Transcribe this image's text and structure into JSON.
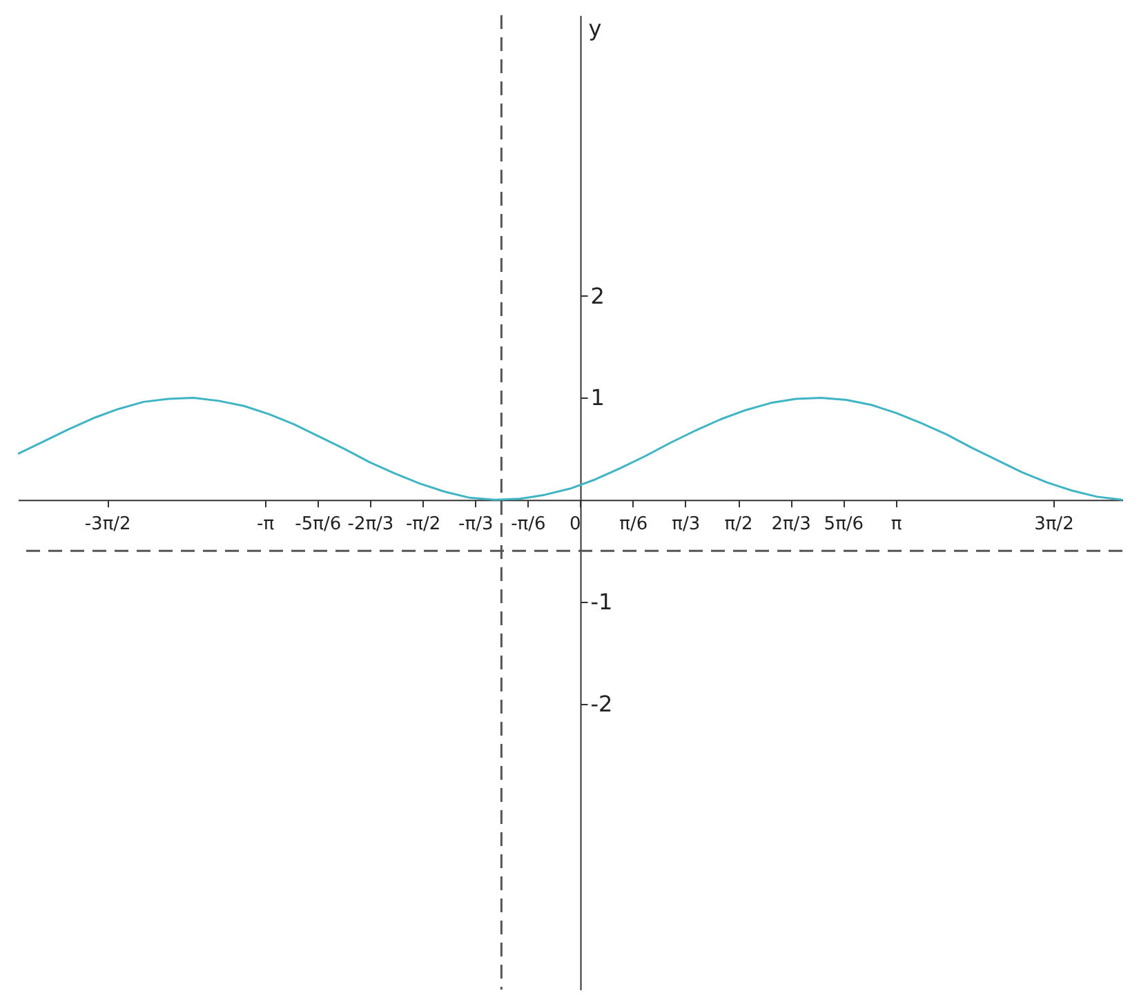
{
  "chart_data": {
    "type": "line",
    "ylabel": "y",
    "x": [
      -5.6,
      -5.35,
      -5.1,
      -4.85,
      -4.6,
      -4.35,
      -4.1,
      -3.85,
      -3.6,
      -3.35,
      -3.1,
      -2.85,
      -2.6,
      -2.35,
      -2.1,
      -1.85,
      -1.6,
      -1.35,
      -1.1,
      -0.85,
      -0.6,
      -0.35,
      -0.1,
      0.15,
      0.4,
      0.65,
      0.9,
      1.15,
      1.4,
      1.65,
      1.9,
      2.15,
      2.4,
      2.65,
      2.9,
      3.15,
      3.4,
      3.65,
      3.9,
      4.15,
      4.4,
      4.65,
      4.9,
      5.15,
      5.4
    ],
    "series": [
      {
        "color": "#3fb4c4",
        "values": [
          0.45,
          0.57,
          0.69,
          0.8,
          0.89,
          0.96,
          0.99,
          1.0,
          0.97,
          0.92,
          0.84,
          0.74,
          0.62,
          0.5,
          0.37,
          0.26,
          0.16,
          0.08,
          0.02,
          0.0,
          0.01,
          0.05,
          0.11,
          0.2,
          0.31,
          0.43,
          0.56,
          0.68,
          0.79,
          0.88,
          0.95,
          0.99,
          1.0,
          0.98,
          0.93,
          0.85,
          0.75,
          0.64,
          0.51,
          0.39,
          0.27,
          0.17,
          0.09,
          0.03,
          0.0
        ]
      }
    ],
    "xlim": [
      -5.6,
      5.4
    ],
    "ylim": [
      -4.8,
      4.75
    ],
    "xticks": [
      {
        "value": -4.712,
        "label": "-3π/2"
      },
      {
        "value": -3.142,
        "label": "-π"
      },
      {
        "value": -2.618,
        "label": "-5π/6"
      },
      {
        "value": -2.094,
        "label": "-2π/3"
      },
      {
        "value": -1.571,
        "label": "-π/2"
      },
      {
        "value": -1.047,
        "label": "-π/3"
      },
      {
        "value": -0.524,
        "label": "-π/6"
      },
      0,
      {
        "value": 0.524,
        "label": "π/6"
      },
      {
        "value": 1.047,
        "label": "π/3"
      },
      {
        "value": 1.571,
        "label": "π/2"
      },
      {
        "value": 2.094,
        "label": "2π/3"
      },
      {
        "value": 2.618,
        "label": "5π/6"
      },
      {
        "value": 3.142,
        "label": "π"
      },
      {
        "value": 4.712,
        "label": "3π/2"
      }
    ],
    "yticks": [
      -2,
      -1,
      1,
      2
    ],
    "ref_lines": [
      {
        "axis": "x",
        "value": -0.785,
        "line_style": "dashed",
        "color": "#555555"
      },
      {
        "axis": "y",
        "value": -0.5,
        "line_style": "dashed",
        "color": "#555555"
      }
    ],
    "grid": false,
    "marker": "none",
    "line_style": "solid"
  }
}
